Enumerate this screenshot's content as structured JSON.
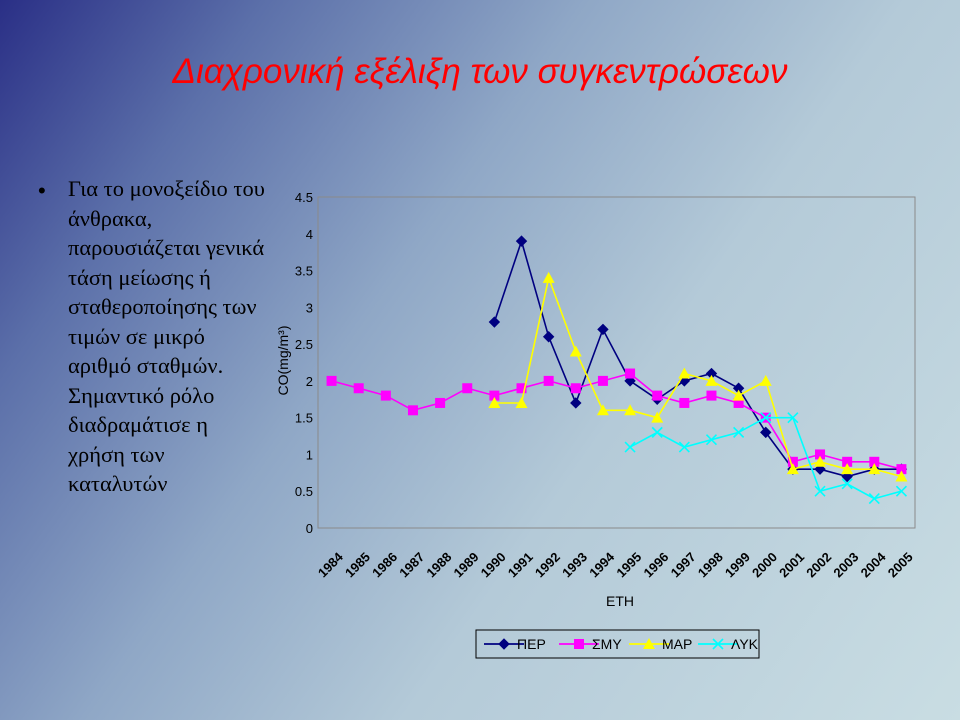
{
  "slide": {
    "title": "Διαχρονική εξέλιξη των συγκεντρώσεων",
    "bullet": "Για το μονοξείδιο του άνθρακα, παρουσιάζεται γενικά τάση μείωσης ή σταθεροποίησης των τιμών σε μικρό αριθμό σταθμών. Σημαντικό ρόλο διαδραμάτισε η χρήση των καταλυτών"
  },
  "chart_data": {
    "type": "line",
    "xlabel": "ΕΤΗ",
    "ylabel": "CO(mg/m³)",
    "ylim": [
      0,
      4.5
    ],
    "yticks": [
      "0",
      "0.5",
      "1",
      "1.5",
      "2",
      "2.5",
      "3",
      "3.5",
      "4",
      "4.5"
    ],
    "x": [
      "1984",
      "1985",
      "1986",
      "1987",
      "1988",
      "1989",
      "1990",
      "1991",
      "1992",
      "1993",
      "1994",
      "1995",
      "1996",
      "1997",
      "1998",
      "1999",
      "2000",
      "2001",
      "2002",
      "2003",
      "2004",
      "2005"
    ],
    "grid": false,
    "legend_position": "bottom",
    "series": [
      {
        "name": "ΠΕΡ",
        "color": "#000080",
        "marker": "diamond",
        "values": [
          null,
          null,
          null,
          null,
          null,
          null,
          2.8,
          3.9,
          2.6,
          1.7,
          2.7,
          2.0,
          1.75,
          2.0,
          2.1,
          1.9,
          1.3,
          0.8,
          0.8,
          0.7,
          0.8,
          0.8
        ]
      },
      {
        "name": "ΣΜΥ",
        "color": "#ff00ff",
        "marker": "square",
        "values": [
          2.0,
          1.9,
          1.8,
          1.6,
          1.7,
          1.9,
          1.8,
          1.9,
          2.0,
          1.9,
          2.0,
          2.1,
          1.8,
          1.7,
          1.8,
          1.7,
          1.5,
          0.9,
          1.0,
          0.9,
          0.9,
          0.8
        ]
      },
      {
        "name": "ΜΑΡ",
        "color": "#ffff00",
        "marker": "triangle",
        "values": [
          null,
          null,
          null,
          null,
          null,
          null,
          1.7,
          1.7,
          3.4,
          2.4,
          1.6,
          1.6,
          1.5,
          2.1,
          2.0,
          1.8,
          2.0,
          0.8,
          0.9,
          0.8,
          0.8,
          0.7
        ]
      },
      {
        "name": "ΛΥΚ",
        "color": "#00ffff",
        "marker": "x",
        "values": [
          null,
          null,
          null,
          null,
          null,
          null,
          null,
          null,
          null,
          null,
          null,
          1.1,
          1.3,
          1.1,
          1.2,
          1.3,
          1.5,
          1.5,
          0.5,
          0.6,
          0.4,
          0.5
        ]
      }
    ]
  }
}
